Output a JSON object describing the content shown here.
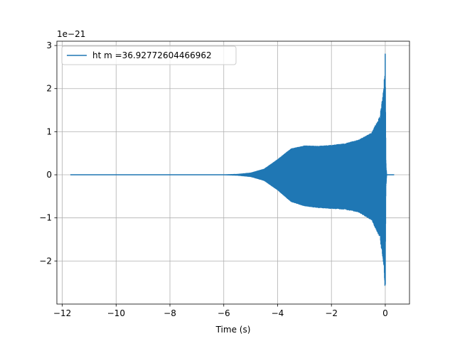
{
  "chart_data": {
    "type": "line",
    "title": "",
    "xlabel": "Time (s)",
    "ylabel": "",
    "offset_text": "1e−21",
    "xlim": [
      -12.2,
      0.9
    ],
    "ylim": [
      -3.0,
      3.1
    ],
    "x_ticks": [
      -12,
      -10,
      -8,
      -6,
      -4,
      -2,
      0
    ],
    "x_tick_labels": [
      "−12",
      "−10",
      "−8",
      "−6",
      "−4",
      "−2",
      "0"
    ],
    "y_ticks": [
      -2,
      -1,
      0,
      1,
      2,
      3
    ],
    "y_tick_labels": [
      "−2",
      "−1",
      "0",
      "1",
      "2",
      "3"
    ],
    "grid": true,
    "legend_position": "top-left",
    "series": [
      {
        "name": "ht m =36.92772604466962",
        "color": "#1f77b4",
        "t_start": -11.7,
        "t_merger": 0.0,
        "t_end": 0.33,
        "envelope": {
          "t": [
            -11.7,
            -6.0,
            -5.5,
            -5.0,
            -4.5,
            -4.0,
            -3.5,
            -3.0,
            -2.5,
            -2.0,
            -1.5,
            -1.0,
            -0.5,
            -0.2,
            -0.05,
            0.0,
            0.02,
            0.05,
            0.33
          ],
          "upper": [
            0.0,
            0.0,
            0.01,
            0.04,
            0.13,
            0.35,
            0.6,
            0.67,
            0.66,
            0.68,
            0.72,
            0.8,
            0.97,
            1.35,
            2.0,
            2.85,
            0.3,
            0.0,
            0.0
          ],
          "lower": [
            0.0,
            0.0,
            -0.01,
            -0.04,
            -0.13,
            -0.35,
            -0.62,
            -0.72,
            -0.76,
            -0.78,
            -0.8,
            -0.86,
            -1.05,
            -1.45,
            -2.1,
            -2.72,
            -0.3,
            0.0,
            0.0
          ]
        }
      }
    ]
  }
}
